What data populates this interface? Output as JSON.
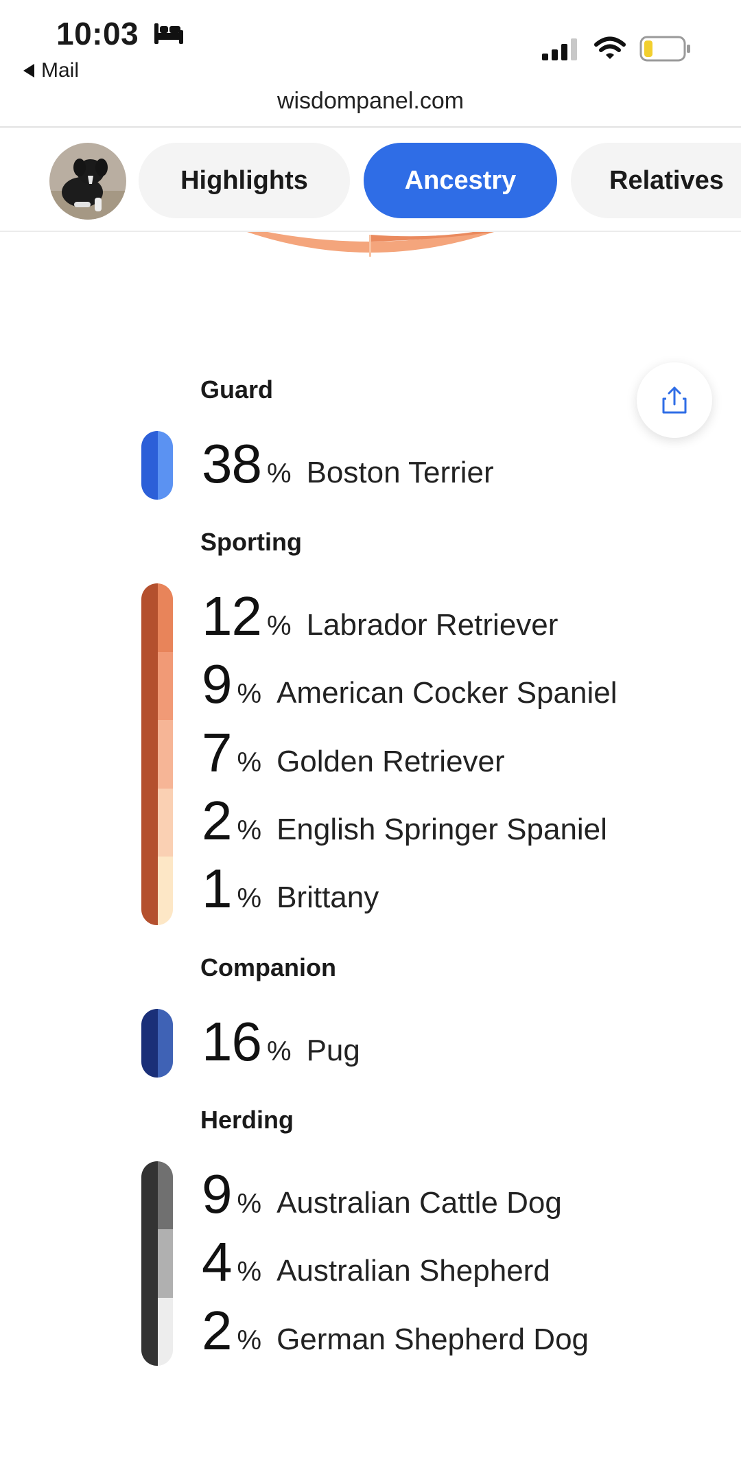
{
  "status_bar": {
    "time": "10:03",
    "back_label": "Mail",
    "url": "wisdompanel.com",
    "icons": [
      "bed-icon",
      "cellular-signal-icon",
      "wifi-icon",
      "battery-icon"
    ]
  },
  "nav": {
    "tabs": [
      {
        "label": "Highlights",
        "active": false
      },
      {
        "label": "Ancestry",
        "active": true
      },
      {
        "label": "Relatives",
        "active": false
      }
    ]
  },
  "colors": {
    "accent": "#2f6de6",
    "guard": "#3a6fe0",
    "sporting": "#b4502e",
    "companion": "#1e3a8a",
    "herding": "#333333"
  },
  "ancestry": {
    "groups": [
      {
        "name": "Guard",
        "bar_color": "#2c5fd8",
        "breeds": [
          {
            "percent": "38",
            "symbol": "%",
            "name": "Boston Terrier",
            "shade": "#5b92f2"
          }
        ]
      },
      {
        "name": "Sporting",
        "bar_color": "#b4502e",
        "breeds": [
          {
            "percent": "12",
            "symbol": "%",
            "name": "Labrador Retriever",
            "shade": "#e8845a"
          },
          {
            "percent": "9",
            "symbol": "%",
            "name": "American Cocker Spaniel",
            "shade": "#f19a76"
          },
          {
            "percent": "7",
            "symbol": "%",
            "name": "Golden Retriever",
            "shade": "#f6b596"
          },
          {
            "percent": "2",
            "symbol": "%",
            "name": "English Springer Spaniel",
            "shade": "#fad0b3"
          },
          {
            "percent": "1",
            "symbol": "%",
            "name": "Brittany",
            "shade": "#fde7c6"
          }
        ]
      },
      {
        "name": "Companion",
        "bar_color": "#1a2f78",
        "breeds": [
          {
            "percent": "16",
            "symbol": "%",
            "name": "Pug",
            "shade": "#3f62b5"
          }
        ]
      },
      {
        "name": "Herding",
        "bar_color": "#333333",
        "breeds": [
          {
            "percent": "9",
            "symbol": "%",
            "name": "Australian Cattle Dog",
            "shade": "#707070"
          },
          {
            "percent": "4",
            "symbol": "%",
            "name": "Australian Shepherd",
            "shade": "#b0b0b0"
          },
          {
            "percent": "2",
            "symbol": "%",
            "name": "German Shepherd Dog",
            "shade": "#ededed"
          }
        ]
      }
    ]
  }
}
